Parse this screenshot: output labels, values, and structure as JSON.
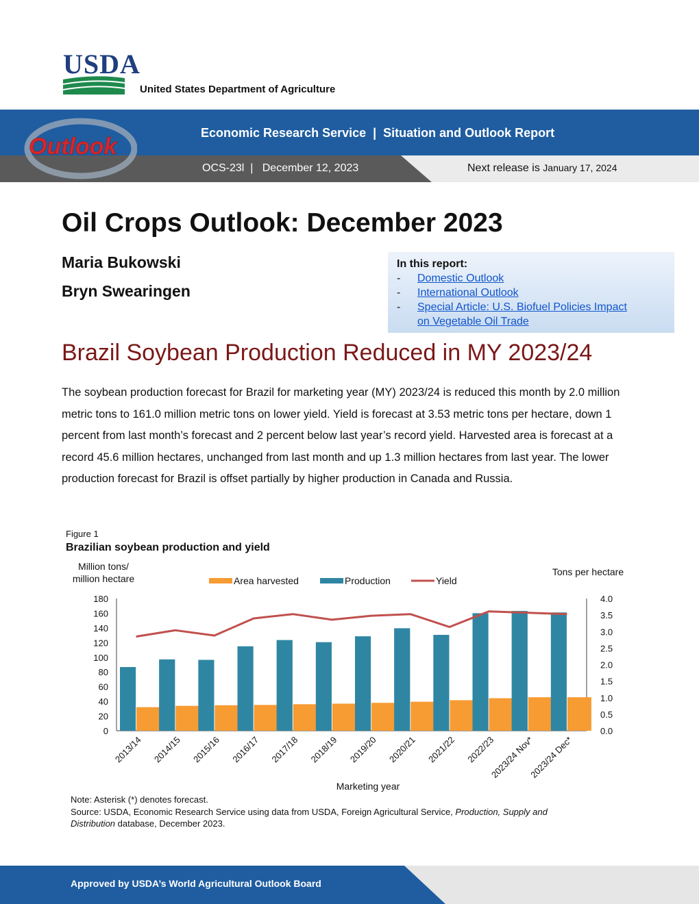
{
  "header": {
    "logo": "USDA",
    "department": "United States Department of Agriculture",
    "outlook_logo": "Outlook",
    "agency_line": "Economic Research Service  |  Situation and Outlook Report",
    "issue_line": "OCS-23l  |   December 12, 2023",
    "next_release_label": "Next release is",
    "next_release_date": "January 17, 2024",
    "colors": {
      "band": "#1f5da0",
      "band_grey": "#5a5a5a"
    }
  },
  "title": "Oil Crops Outlook: December 2023",
  "authors": [
    "Maria Bukowski",
    "Bryn Swearingen"
  ],
  "toc": {
    "heading": "In this report:",
    "items": [
      {
        "dash": "-",
        "label": "Domestic Outlook"
      },
      {
        "dash": "-",
        "label": "International Outlook"
      },
      {
        "dash": "-",
        "label": "Special Article: U.S. Biofuel Policies Impact",
        "label2": "on Vegetable Oil Trade"
      }
    ]
  },
  "headline": "Brazil Soybean Production Reduced in MY 2023/24",
  "paragraph": "The soybean production forecast for Brazil for marketing year (MY) 2023/24 is reduced this month by 2.0 million metric tons to 161.0 million metric tons on lower yield. Yield is forecast at 3.53 metric tons per hectare, down 1 percent from last month’s forecast and 2 percent below last year’s record yield. Harvested area is forecast at a record 45.6 million hectares, unchanged from last month and up 1.3 million hectares from last year. The lower production forecast for Brazil is offset partially by higher production in Canada and Russia.",
  "figure": {
    "label": "Figure 1",
    "title": "Brazilian soybean production and yield",
    "note": "Note: Asterisk (*) denotes forecast.",
    "source_prefix": "Source: USDA, Economic Research Service using data from USDA, Foreign Agricultural Service, ",
    "source_italic1": "Production, Supply and",
    "source_italic2": "Distribution",
    "source_suffix": " database, December 2023."
  },
  "chart_data": {
    "type": "bar",
    "ylabel_left_line1": "Million tons/",
    "ylabel_left_line2": "million hectare",
    "ylabel_right": "Tons per hectare",
    "xlabel": "Marketing year",
    "legend_position": "top",
    "ylim_left": [
      0,
      180
    ],
    "ylim_right": [
      0,
      4.0
    ],
    "yticks_left": [
      "180",
      "160",
      "140",
      "120",
      "100",
      "80",
      "60",
      "40",
      "20",
      "0"
    ],
    "yticks_right": [
      "4.0",
      "3.5",
      "3.0",
      "2.5",
      "2.0",
      "1.5",
      "1.0",
      "0.5",
      "0.0"
    ],
    "categories": [
      "2013/14",
      "2014/15",
      "2015/16",
      "2016/17",
      "2017/18",
      "2018/19",
      "2019/20",
      "2020/21",
      "2021/22",
      "2022/23",
      "2023/24 Nov*",
      "2023/24 Dec*"
    ],
    "series": [
      {
        "name": "Area harvested",
        "kind": "bar",
        "axis": "left",
        "color": "#f79b33",
        "values": [
          32.1,
          33.9,
          34.7,
          35.1,
          36.1,
          36.9,
          38.0,
          39.5,
          41.6,
          44.3,
          45.6,
          45.6
        ]
      },
      {
        "name": "Production",
        "kind": "bar",
        "axis": "left",
        "color": "#2f86a3",
        "values": [
          86.7,
          97.1,
          96.5,
          114.9,
          123.4,
          120.5,
          128.5,
          139.5,
          130.5,
          160.0,
          163.0,
          161.0
        ]
      },
      {
        "name": "Yield",
        "kind": "line",
        "axis": "right",
        "color": "#c0504d",
        "values": [
          2.85,
          3.04,
          2.88,
          3.4,
          3.53,
          3.36,
          3.48,
          3.53,
          3.14,
          3.61,
          3.57,
          3.53
        ]
      }
    ]
  },
  "footer": {
    "text": "Approved by USDA’s World Agricultural Outlook Board"
  }
}
